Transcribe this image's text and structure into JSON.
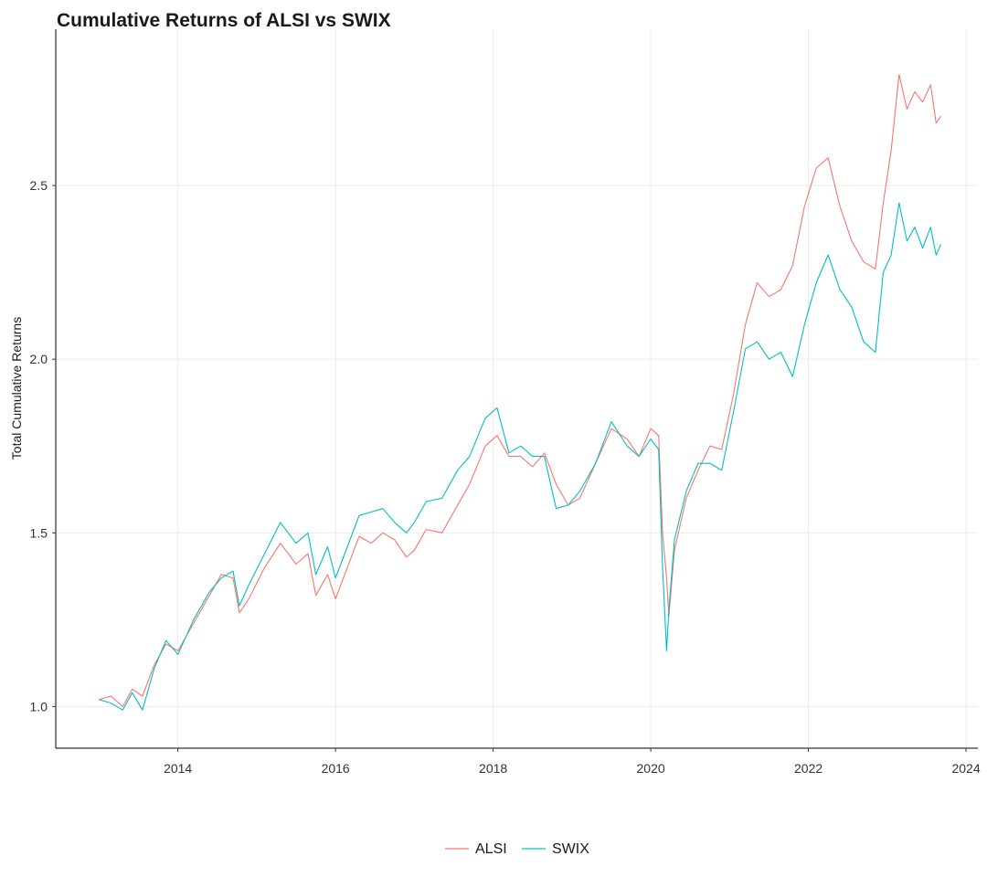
{
  "chart_data": {
    "type": "line",
    "title": "Cumulative Returns of ALSI vs SWIX",
    "xlabel": "",
    "ylabel": "Total Cumulative Returns",
    "xlim": [
      2012.45,
      2024.15
    ],
    "ylim": [
      0.88,
      2.95
    ],
    "x_ticks": [
      2014,
      2016,
      2018,
      2020,
      2022,
      2024
    ],
    "x_tick_labels": [
      "2014",
      "2016",
      "2018",
      "2020",
      "2022",
      "2024"
    ],
    "y_ticks": [
      1.0,
      1.5,
      2.0,
      2.5
    ],
    "y_tick_labels": [
      "1.0",
      "1.5",
      "2.0",
      "2.5"
    ],
    "grid": true,
    "legend_position": "bottom",
    "series": [
      {
        "name": "ALSI",
        "color": "#F8766D",
        "x": [
          2013.0,
          2013.15,
          2013.3,
          2013.42,
          2013.55,
          2013.7,
          2013.85,
          2014.0,
          2014.2,
          2014.4,
          2014.55,
          2014.7,
          2014.78,
          2014.9,
          2015.1,
          2015.3,
          2015.5,
          2015.65,
          2015.75,
          2015.9,
          2016.0,
          2016.15,
          2016.3,
          2016.45,
          2016.6,
          2016.75,
          2016.9,
          2017.0,
          2017.15,
          2017.35,
          2017.55,
          2017.7,
          2017.9,
          2018.05,
          2018.2,
          2018.35,
          2018.5,
          2018.65,
          2018.8,
          2018.95,
          2019.1,
          2019.3,
          2019.5,
          2019.7,
          2019.85,
          2020.0,
          2020.1,
          2020.15,
          2020.2,
          2020.23,
          2020.3,
          2020.45,
          2020.6,
          2020.75,
          2020.9,
          2021.05,
          2021.2,
          2021.35,
          2021.5,
          2021.65,
          2021.8,
          2021.95,
          2022.1,
          2022.25,
          2022.4,
          2022.55,
          2022.7,
          2022.85,
          2022.95,
          2023.05,
          2023.15,
          2023.25,
          2023.35,
          2023.45,
          2023.55,
          2023.62,
          2023.68
        ],
        "y": [
          1.02,
          1.03,
          1.0,
          1.05,
          1.03,
          1.12,
          1.18,
          1.16,
          1.24,
          1.32,
          1.38,
          1.37,
          1.27,
          1.31,
          1.4,
          1.47,
          1.41,
          1.44,
          1.32,
          1.38,
          1.31,
          1.4,
          1.49,
          1.47,
          1.5,
          1.48,
          1.43,
          1.45,
          1.51,
          1.5,
          1.58,
          1.64,
          1.75,
          1.78,
          1.72,
          1.72,
          1.69,
          1.73,
          1.64,
          1.58,
          1.6,
          1.7,
          1.8,
          1.77,
          1.72,
          1.8,
          1.78,
          1.5,
          1.37,
          1.26,
          1.45,
          1.6,
          1.68,
          1.75,
          1.74,
          1.9,
          2.1,
          2.22,
          2.18,
          2.2,
          2.27,
          2.44,
          2.55,
          2.58,
          2.44,
          2.34,
          2.28,
          2.26,
          2.45,
          2.6,
          2.82,
          2.72,
          2.77,
          2.74,
          2.79,
          2.68,
          2.7
        ]
      },
      {
        "name": "SWIX",
        "color": "#00BFC4",
        "x": [
          2013.0,
          2013.15,
          2013.3,
          2013.42,
          2013.55,
          2013.7,
          2013.85,
          2014.0,
          2014.2,
          2014.4,
          2014.55,
          2014.7,
          2014.78,
          2014.9,
          2015.1,
          2015.3,
          2015.5,
          2015.65,
          2015.75,
          2015.9,
          2016.0,
          2016.15,
          2016.3,
          2016.45,
          2016.6,
          2016.75,
          2016.9,
          2017.0,
          2017.15,
          2017.35,
          2017.55,
          2017.7,
          2017.9,
          2018.05,
          2018.2,
          2018.35,
          2018.5,
          2018.65,
          2018.8,
          2018.95,
          2019.1,
          2019.3,
          2019.5,
          2019.7,
          2019.85,
          2020.0,
          2020.1,
          2020.15,
          2020.2,
          2020.23,
          2020.3,
          2020.45,
          2020.6,
          2020.75,
          2020.9,
          2021.05,
          2021.2,
          2021.35,
          2021.5,
          2021.65,
          2021.8,
          2021.95,
          2022.1,
          2022.25,
          2022.4,
          2022.55,
          2022.7,
          2022.85,
          2022.95,
          2023.05,
          2023.15,
          2023.25,
          2023.35,
          2023.45,
          2023.55,
          2023.62,
          2023.68
        ],
        "y": [
          1.02,
          1.01,
          0.99,
          1.04,
          0.99,
          1.11,
          1.19,
          1.15,
          1.25,
          1.33,
          1.37,
          1.39,
          1.29,
          1.35,
          1.44,
          1.53,
          1.47,
          1.5,
          1.38,
          1.46,
          1.37,
          1.46,
          1.55,
          1.56,
          1.57,
          1.53,
          1.5,
          1.53,
          1.59,
          1.6,
          1.68,
          1.72,
          1.83,
          1.86,
          1.73,
          1.75,
          1.72,
          1.72,
          1.57,
          1.58,
          1.62,
          1.7,
          1.82,
          1.75,
          1.72,
          1.77,
          1.74,
          1.4,
          1.16,
          1.28,
          1.48,
          1.62,
          1.7,
          1.7,
          1.68,
          1.85,
          2.03,
          2.05,
          2.0,
          2.02,
          1.95,
          2.1,
          2.22,
          2.3,
          2.2,
          2.15,
          2.05,
          2.02,
          2.25,
          2.3,
          2.45,
          2.34,
          2.38,
          2.32,
          2.38,
          2.3,
          2.33
        ]
      }
    ]
  }
}
